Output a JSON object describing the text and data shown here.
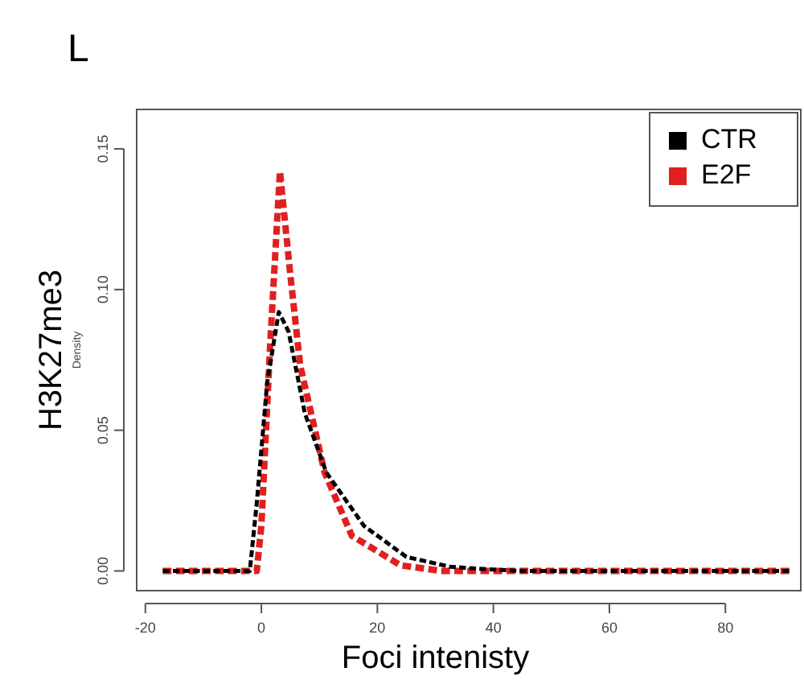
{
  "chart_data": {
    "type": "line",
    "title": "L",
    "xlabel": "Foci intenisty",
    "ylabel": "H3K27me3",
    "annotations": [
      "Density"
    ],
    "xlim": [
      -21.5,
      93
    ],
    "ylim": [
      -0.007,
      0.164
    ],
    "xticks": [
      -20,
      0,
      20,
      40,
      60,
      80
    ],
    "yticks": [
      {
        "value": 0,
        "label": "0.00"
      },
      {
        "value": 0.05,
        "label": "0.05"
      },
      {
        "value": 0.1,
        "label": "0.10"
      },
      {
        "value": 0.15,
        "label": "0.15"
      }
    ],
    "grid": false,
    "legend": "top right",
    "marker": "none",
    "series": [
      {
        "name": "CTR",
        "color": "#000000",
        "line_style": "dashed",
        "x": [
          -17,
          -2,
          -0.8,
          1,
          3,
          4.7,
          7.5,
          11.2,
          17.7,
          25,
          32.5,
          38,
          45,
          60,
          91
        ],
        "values": [
          0,
          0,
          0.024,
          0.067,
          0.092,
          0.085,
          0.056,
          0.035,
          0.016,
          0.005,
          0.0015,
          0.0007,
          0,
          0,
          0
        ]
      },
      {
        "name": "E2F",
        "color": "#e02020",
        "line_style": "dashed",
        "x": [
          -17,
          -2,
          -0.8,
          0,
          1.5,
          3.2,
          5,
          6.7,
          10.9,
          15.6,
          24,
          31,
          45,
          60,
          91
        ],
        "values": [
          0,
          0,
          0,
          0.016,
          0.08,
          0.142,
          0.105,
          0.073,
          0.035,
          0.0125,
          0.002,
          0,
          0,
          0,
          0
        ]
      }
    ]
  }
}
